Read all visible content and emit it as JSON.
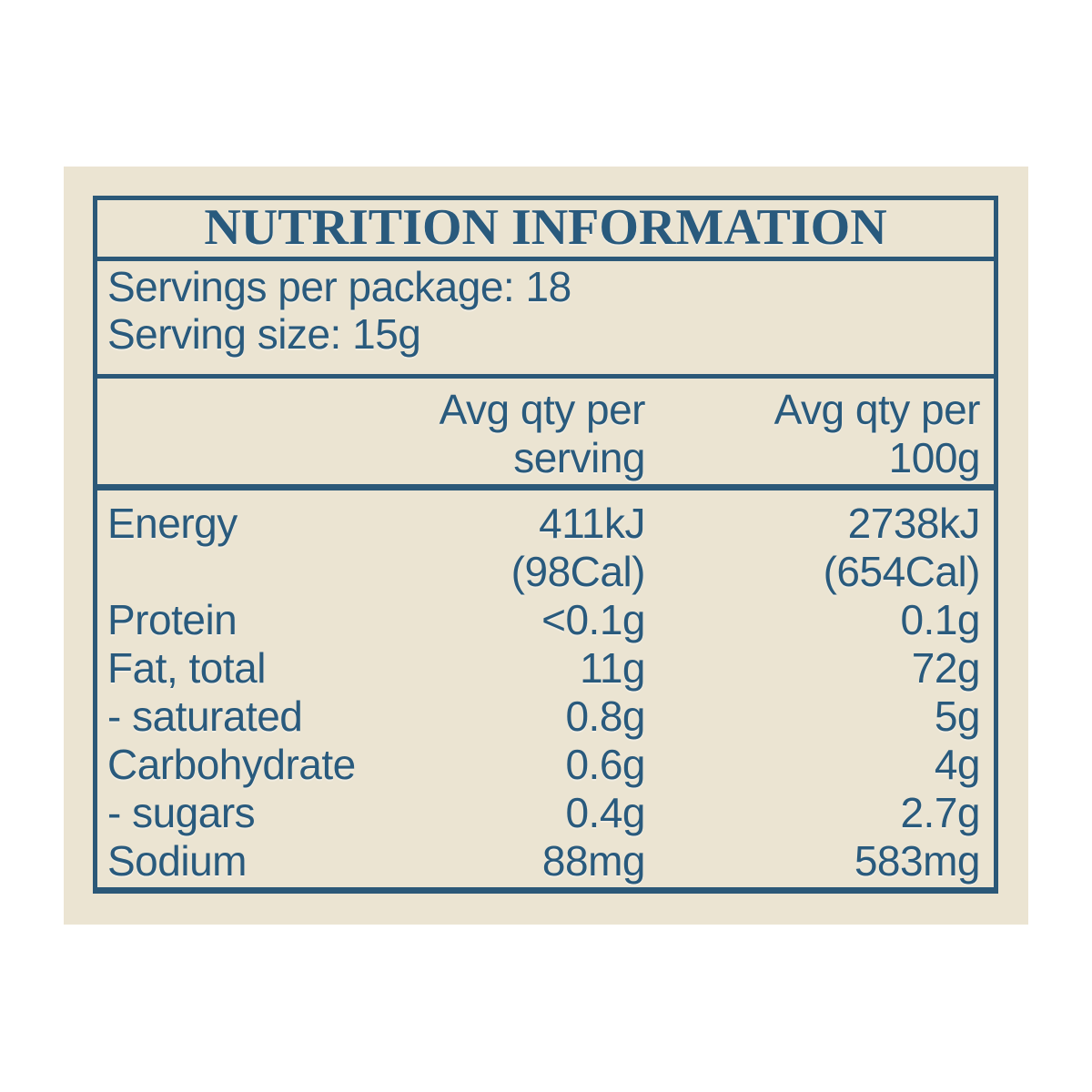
{
  "label": {
    "title": "NUTRITION INFORMATION",
    "servings_per_package": "Servings per package: 18",
    "serving_size": "Serving size: 15g",
    "columns": {
      "per_serving_line1": "Avg qty per",
      "per_serving_line2": "serving",
      "per_100g_line1": "Avg qty per",
      "per_100g_line2": "100g"
    },
    "rows": [
      {
        "name": "Energy",
        "per_serving": "411kJ",
        "per_serving_line2": "(98Cal)",
        "per_100g": "2738kJ",
        "per_100g_line2": "(654Cal)"
      },
      {
        "name": "Protein",
        "per_serving": "<0.1g",
        "per_100g": "0.1g"
      },
      {
        "name": "Fat, total",
        "per_serving": "11g",
        "per_100g": "72g"
      },
      {
        "name": "- saturated",
        "per_serving": "0.8g",
        "per_100g": "5g"
      },
      {
        "name": "Carbohydrate",
        "per_serving": "0.6g",
        "per_100g": "4g"
      },
      {
        "name": "- sugars",
        "per_serving": "0.4g",
        "per_100g": "2.7g"
      },
      {
        "name": "Sodium",
        "per_serving": "88mg",
        "per_100g": "583mg"
      }
    ],
    "colors": {
      "page_background": "#ffffff",
      "panel_background": "#ebe4d2",
      "text_blue": "#295a7d",
      "border_blue": "#2b5878"
    }
  }
}
